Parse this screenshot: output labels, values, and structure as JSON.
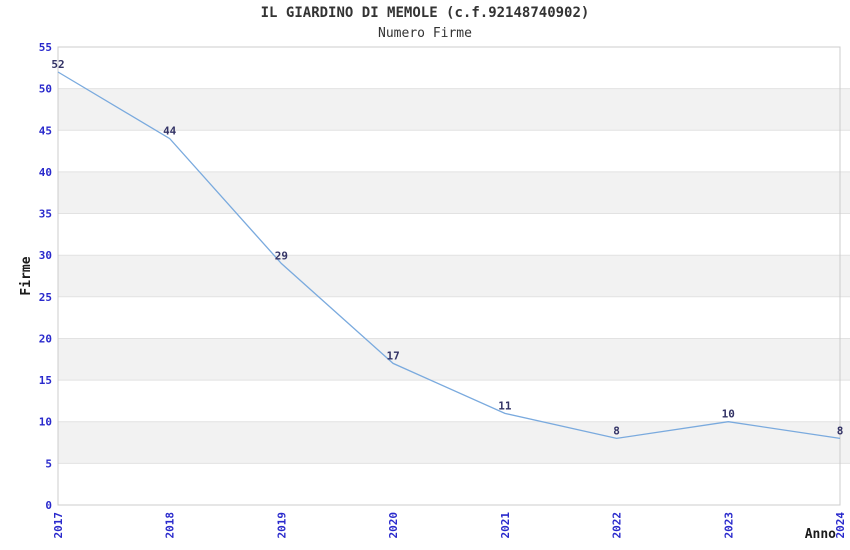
{
  "chart_data": {
    "type": "line",
    "title": "IL GIARDINO DI MEMOLE (c.f.92148740902)",
    "subtitle": "Numero Firme",
    "xlabel": "Anno",
    "ylabel": "Firme",
    "categories": [
      "2017",
      "2018",
      "2019",
      "2020",
      "2021",
      "2022",
      "2023",
      "2024"
    ],
    "series": [
      {
        "name": "Numero Firme",
        "values": [
          52,
          44,
          29,
          17,
          11,
          8,
          10,
          8
        ]
      }
    ],
    "data_labels": [
      "52",
      "44",
      "29",
      "17",
      "11",
      "8",
      "10",
      "8"
    ],
    "ylim": [
      0,
      55
    ],
    "ytick_step": 5,
    "yticks": [
      0,
      5,
      10,
      15,
      20,
      25,
      30,
      35,
      40,
      45,
      50,
      55
    ],
    "grid": "horizontal-bands-alternating",
    "legend": "none",
    "colors": {
      "line": "#7aaade",
      "tick_label": "#2929cc",
      "data_label": "#333366",
      "band_fill": "#f2f2f2",
      "grid_line": "#e2e2e2",
      "plot_border": "#cccccc",
      "title_text": "#333333",
      "axis_title_text": "#1a1a1a",
      "background": "#ffffff"
    }
  }
}
